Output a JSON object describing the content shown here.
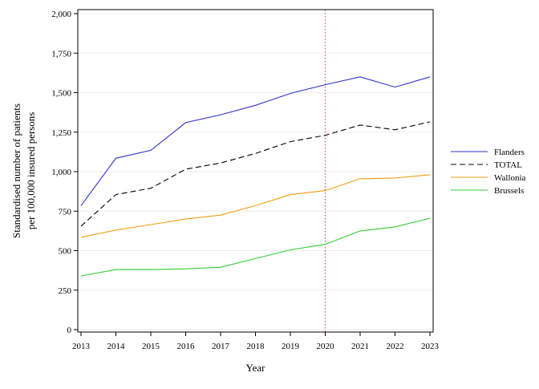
{
  "chart_data": {
    "type": "line",
    "xlabel": "Year",
    "ylabel_lines": [
      "Standardised number of patients",
      "per 100,000 insured persons"
    ],
    "x": [
      2013,
      2014,
      2015,
      2016,
      2017,
      2018,
      2019,
      2020,
      2021,
      2022,
      2023
    ],
    "ylim": [
      0,
      2000
    ],
    "yticks": [
      0,
      250,
      500,
      750,
      1000,
      1250,
      1500,
      1750,
      2000
    ],
    "ytick_labels": [
      "0",
      "250",
      "500",
      "750",
      "1,000",
      "1,250",
      "1,500",
      "1,750",
      "2,000"
    ],
    "grid": "horizontal, light",
    "reference_line": {
      "x": 2020,
      "color": "#d9534f",
      "style": "dotted"
    },
    "legend_position": "right",
    "series": [
      {
        "name": "Flanders",
        "color": "#3333cc",
        "dash": "solid",
        "values": [
          785,
          1085,
          1135,
          1310,
          1360,
          1420,
          1495,
          1550,
          1600,
          1535,
          1600
        ]
      },
      {
        "name": "TOTAL",
        "color": "#000000",
        "dash": "dashed",
        "values": [
          655,
          855,
          895,
          1015,
          1055,
          1115,
          1190,
          1230,
          1295,
          1265,
          1315
        ]
      },
      {
        "name": "Wallonia",
        "color": "#f39c12",
        "dash": "solid",
        "values": [
          585,
          630,
          665,
          700,
          725,
          785,
          855,
          880,
          955,
          960,
          980
        ]
      },
      {
        "name": "Brussels",
        "color": "#33cc33",
        "dash": "solid",
        "values": [
          340,
          380,
          380,
          385,
          395,
          450,
          505,
          540,
          625,
          650,
          705
        ]
      }
    ]
  }
}
